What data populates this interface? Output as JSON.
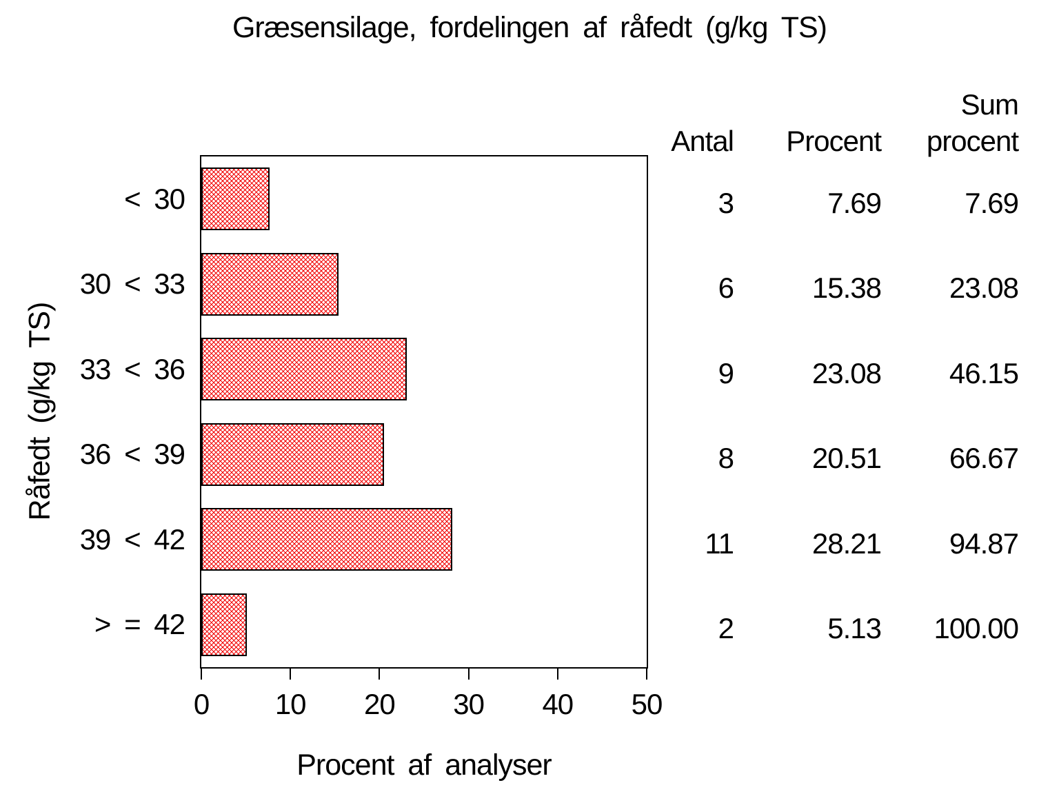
{
  "title": "Græsensilage, fordelingen af råfedt (g/kg TS)",
  "chart_data": {
    "type": "bar",
    "orientation": "horizontal",
    "title": "Græsensilage, fordelingen af råfedt (g/kg TS)",
    "xlabel": "Procent af analyser",
    "ylabel": "Råfedt (g/kg TS)",
    "xlim": [
      0,
      50
    ],
    "xticks": [
      0,
      10,
      20,
      30,
      40,
      50
    ],
    "categories": [
      "< 30",
      "30 < 33",
      "33 < 36",
      "36 < 39",
      "39 < 42",
      "> = 42"
    ],
    "values": [
      7.69,
      15.38,
      23.08,
      20.51,
      28.21,
      5.13
    ],
    "counts": [
      3,
      6,
      9,
      8,
      11,
      2
    ],
    "cum_percent": [
      7.69,
      23.08,
      46.15,
      66.67,
      94.87,
      100.0
    ],
    "bar_fill_color": "#f20000",
    "bar_border_color": "#000000",
    "bar_pattern": "crosshatch",
    "grid": false,
    "legend": "none"
  },
  "side_table": {
    "col1_header": "Antal",
    "col2_header": "Procent",
    "col3_header_line1": "Sum",
    "col3_header_line2": "procent",
    "rows": [
      [
        "3",
        "7.69",
        "7.69"
      ],
      [
        "6",
        "15.38",
        "23.08"
      ],
      [
        "9",
        "23.08",
        "46.15"
      ],
      [
        "8",
        "20.51",
        "66.67"
      ],
      [
        "11",
        "28.21",
        "94.87"
      ],
      [
        "2",
        "5.13",
        "100.00"
      ]
    ]
  }
}
